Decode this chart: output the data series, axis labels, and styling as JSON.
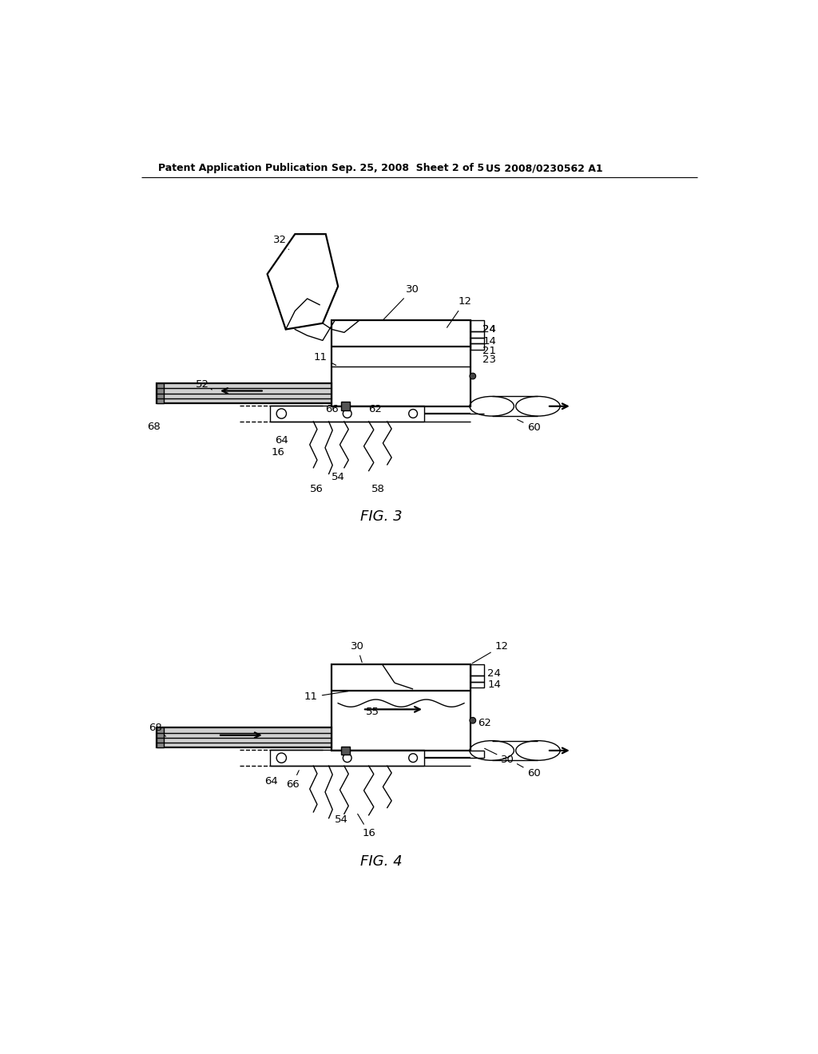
{
  "bg_color": "#ffffff",
  "line_color": "#000000",
  "header_left": "Patent Application Publication",
  "header_mid": "Sep. 25, 2008  Sheet 2 of 5",
  "header_right": "US 2008/0230562 A1",
  "fig3_label": "FIG. 3",
  "fig4_label": "FIG. 4"
}
